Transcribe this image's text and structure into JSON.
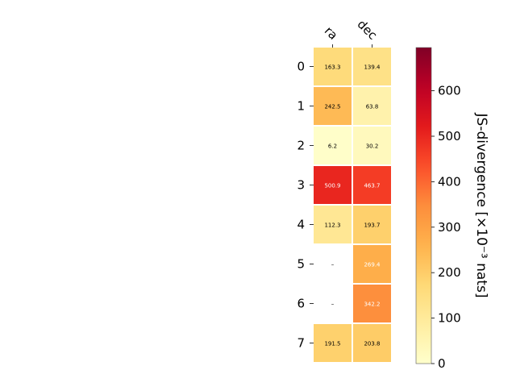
{
  "chart_data": {
    "type": "heatmap",
    "columns": [
      "ra",
      "dec"
    ],
    "rows": [
      "0",
      "1",
      "2",
      "3",
      "4",
      "5",
      "6",
      "7"
    ],
    "values": [
      [
        163.3,
        139.4
      ],
      [
        242.5,
        63.8
      ],
      [
        6.2,
        30.2
      ],
      [
        500.9,
        463.7
      ],
      [
        112.3,
        193.7
      ],
      [
        null,
        269.4
      ],
      [
        null,
        342.2
      ],
      [
        191.5,
        203.8
      ]
    ],
    "missing_label": "–",
    "colorbar": {
      "label": "JS-divergence [×10⁻³ nats]",
      "ticks": [
        0,
        100,
        200,
        300,
        400,
        500,
        600
      ],
      "range": [
        0,
        695
      ],
      "colormap": "YlOrRd"
    }
  }
}
